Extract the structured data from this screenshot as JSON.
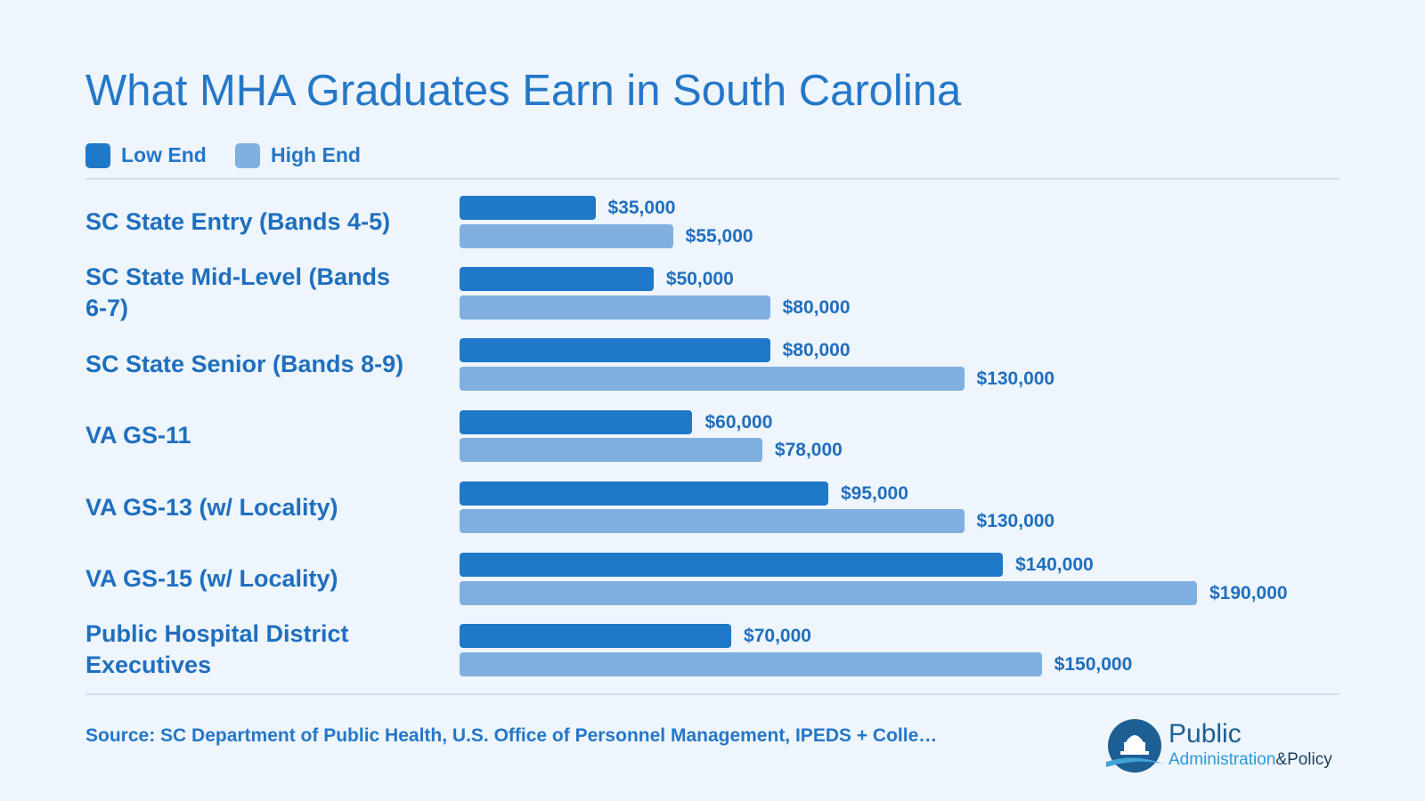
{
  "chart_data": {
    "type": "bar",
    "orientation": "horizontal",
    "title": "What MHA Graduates Earn in South Carolina",
    "categories": [
      "SC State Entry (Bands 4-5)",
      "SC State Mid-Level (Bands 6-7)",
      "SC State Senior (Bands 8-9)",
      "VA GS-11",
      "VA GS-13 (w/ Locality)",
      "VA GS-15 (w/ Locality)",
      "Public Hospital District Executives"
    ],
    "series": [
      {
        "name": "Low End",
        "color": "#1f78c8",
        "values": [
          35000,
          50000,
          80000,
          60000,
          95000,
          140000,
          70000
        ],
        "value_labels": [
          "$35,000",
          "$50,000",
          "$80,000",
          "$60,000",
          "$95,000",
          "$140,000",
          "$70,000"
        ]
      },
      {
        "name": "High End",
        "color": "#7fb0e0",
        "values": [
          55000,
          80000,
          130000,
          78000,
          130000,
          190000,
          150000
        ],
        "value_labels": [
          "$55,000",
          "$80,000",
          "$130,000",
          "$78,000",
          "$130,000",
          "$190,000",
          "$150,000"
        ]
      }
    ],
    "source": "Source: SC Department of Public Health, U.S. Office of Personnel Management, IPEDS + Colle…"
  },
  "logo": {
    "line1": "Public",
    "line2a": "Administration",
    "line2b": "&Policy"
  }
}
